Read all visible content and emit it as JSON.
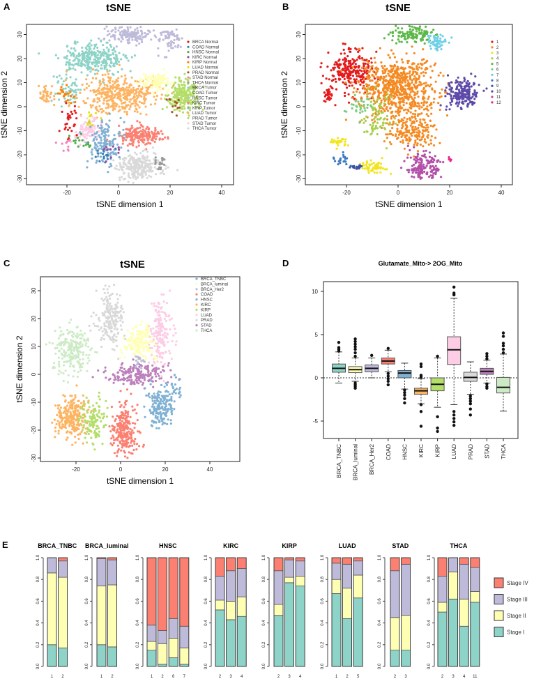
{
  "chart_data": [
    {
      "panel": "A",
      "type": "scatter",
      "title": "tSNE",
      "xlabel": "tSNE dimension 1",
      "ylabel": "tSNE dimension 2",
      "xlim": [
        -36,
        44
      ],
      "ylim": [
        -32,
        34
      ],
      "xticks": [
        -20,
        0,
        20,
        40
      ],
      "yticks": [
        -30,
        -20,
        -10,
        0,
        10,
        20,
        30
      ],
      "legend_position": "right",
      "legend": [
        {
          "label": "BRCA Normal",
          "color": "#e41a1c"
        },
        {
          "label": "COAD Normal",
          "color": "#377eb8"
        },
        {
          "label": "HNSC Normal",
          "color": "#4daf4a"
        },
        {
          "label": "KIRC Normal",
          "color": "#984ea3"
        },
        {
          "label": "KIRP Normal",
          "color": "#ff7f00"
        },
        {
          "label": "LUAD Normal",
          "color": "#e6e600"
        },
        {
          "label": "PRAD Normal",
          "color": "#a65628"
        },
        {
          "label": "STAD Normal",
          "color": "#f781bf"
        },
        {
          "label": "THCA Normal",
          "color": "#999999"
        },
        {
          "label": "BRCA Tumor",
          "color": "#8dd3c7"
        },
        {
          "label": "COAD Tumor",
          "color": "#ffffb3"
        },
        {
          "label": "HNSC Tumor",
          "color": "#bebada"
        },
        {
          "label": "KIRC Tumor",
          "color": "#fb8072"
        },
        {
          "label": "KIRP Tumor",
          "color": "#80b1d3"
        },
        {
          "label": "LUAD Tumor",
          "color": "#fdb462"
        },
        {
          "label": "PRAD Tumor",
          "color": "#b3de69"
        },
        {
          "label": "STAD Tumor",
          "color": "#fccde5"
        },
        {
          "label": "THCA Tumor",
          "color": "#d9d9d9"
        }
      ],
      "clusters": [
        [
          11,
          5,
          30,
          8,
          3,
          150
        ],
        [
          11,
          20,
          28,
          4,
          4,
          60
        ],
        [
          9,
          -10,
          20,
          10,
          5,
          300
        ],
        [
          9,
          -20,
          8,
          4,
          6,
          60
        ],
        [
          14,
          0,
          5,
          12,
          7,
          400
        ],
        [
          14,
          -28,
          5,
          3,
          3,
          40
        ],
        [
          10,
          15,
          10,
          5,
          3,
          100
        ],
        [
          15,
          25,
          5,
          5,
          5,
          250
        ],
        [
          12,
          8,
          -12,
          7,
          3,
          200
        ],
        [
          17,
          8,
          -25,
          7,
          4,
          250
        ],
        [
          16,
          -12,
          -10,
          5,
          4,
          100
        ],
        [
          13,
          -5,
          -15,
          6,
          7,
          150
        ],
        [
          0,
          -20,
          -5,
          3,
          8,
          30
        ],
        [
          1,
          -5,
          -20,
          3,
          3,
          15
        ],
        [
          2,
          -15,
          -15,
          4,
          4,
          15
        ],
        [
          3,
          -3,
          -18,
          3,
          3,
          10
        ],
        [
          4,
          -20,
          5,
          4,
          3,
          20
        ],
        [
          5,
          -10,
          -5,
          3,
          3,
          10
        ],
        [
          6,
          22,
          0,
          3,
          3,
          12
        ],
        [
          7,
          -20,
          -15,
          3,
          3,
          10
        ],
        [
          8,
          17,
          -23,
          3,
          2,
          20
        ]
      ]
    },
    {
      "panel": "B",
      "type": "scatter",
      "title": "tSNE",
      "xlabel": "tSNE dimension 1",
      "ylabel": "tSNE dimension 2",
      "xlim": [
        -36,
        44
      ],
      "ylim": [
        -32,
        34
      ],
      "xticks": [
        -20,
        0,
        20,
        40
      ],
      "yticks": [
        -30,
        -20,
        -10,
        0,
        10,
        20,
        30
      ],
      "legend_position": "right",
      "legend": [
        {
          "label": "1",
          "color": "#e41a1c"
        },
        {
          "label": "2",
          "color": "#f58a22"
        },
        {
          "label": "3",
          "color": "#f2e51c"
        },
        {
          "label": "4",
          "color": "#a6d04a"
        },
        {
          "label": "5",
          "color": "#5bb848"
        },
        {
          "label": "6",
          "color": "#7ccd7c"
        },
        {
          "label": "7",
          "color": "#6fd0e6"
        },
        {
          "label": "8",
          "color": "#3b78c2"
        },
        {
          "label": "9",
          "color": "#3a4fa8"
        },
        {
          "label": "10",
          "color": "#5d4aa8"
        },
        {
          "label": "11",
          "color": "#b34ea8"
        },
        {
          "label": "12",
          "color": "#e8268a"
        }
      ],
      "clusters": [
        [
          0,
          -18,
          15,
          8,
          8,
          250
        ],
        [
          0,
          -27,
          5,
          2,
          3,
          30
        ],
        [
          1,
          0,
          8,
          12,
          10,
          700
        ],
        [
          1,
          5,
          -10,
          8,
          6,
          200
        ],
        [
          2,
          -10,
          -25,
          4,
          2,
          60
        ],
        [
          2,
          -23,
          -15,
          3,
          2,
          25
        ],
        [
          3,
          -8,
          -5,
          5,
          8,
          80
        ],
        [
          4,
          5,
          30,
          7,
          3,
          120
        ],
        [
          5,
          -15,
          0,
          4,
          4,
          30
        ],
        [
          6,
          15,
          27,
          3,
          3,
          60
        ],
        [
          7,
          -22,
          -22,
          3,
          2,
          20
        ],
        [
          8,
          -15,
          -25,
          3,
          1,
          15
        ],
        [
          9,
          25,
          5,
          5,
          5,
          200
        ],
        [
          10,
          10,
          -25,
          6,
          5,
          150
        ],
        [
          11,
          20,
          -22,
          1,
          1,
          5
        ]
      ]
    },
    {
      "panel": "C",
      "type": "scatter",
      "title": "tSNE",
      "xlabel": "tSNE dimension 1",
      "ylabel": "tSNE dimension 2",
      "xlim": [
        -36,
        53
      ],
      "ylim": [
        -31,
        35
      ],
      "xticks": [
        -20,
        0,
        20,
        40
      ],
      "yticks": [
        -30,
        -20,
        -10,
        0,
        10,
        20,
        30
      ],
      "legend_position": "right",
      "legend": [
        {
          "label": "BRCA_TNBC",
          "color": "#80b1d3"
        },
        {
          "label": "BRCA_luminal",
          "color": "#ffffb3"
        },
        {
          "label": "BRCA_Her2",
          "color": "#bebada"
        },
        {
          "label": "COAD",
          "color": "#fb8072"
        },
        {
          "label": "HNSC",
          "color": "#80b1d3"
        },
        {
          "label": "KIRC",
          "color": "#fdb462"
        },
        {
          "label": "KIRP",
          "color": "#b3de69"
        },
        {
          "label": "LUAD",
          "color": "#fccde5"
        },
        {
          "label": "PRAD",
          "color": "#d9d9d9"
        },
        {
          "label": "STAD",
          "color": "#bc80bd"
        },
        {
          "label": "THCA",
          "color": "#ccebc5"
        }
      ],
      "clusters": [
        [
          10,
          -22,
          8,
          7,
          8,
          220
        ],
        [
          8,
          -5,
          20,
          5,
          8,
          200
        ],
        [
          7,
          18,
          15,
          4,
          10,
          180
        ],
        [
          1,
          8,
          12,
          6,
          6,
          150
        ],
        [
          9,
          8,
          0,
          12,
          3,
          200
        ],
        [
          5,
          -22,
          -15,
          6,
          6,
          250
        ],
        [
          6,
          -12,
          -17,
          4,
          6,
          120
        ],
        [
          3,
          2,
          -20,
          5,
          8,
          250
        ],
        [
          4,
          18,
          -12,
          5,
          6,
          180
        ],
        [
          0,
          25,
          -5,
          2,
          3,
          20
        ],
        [
          2,
          8,
          5,
          2,
          2,
          15
        ]
      ]
    },
    {
      "panel": "D",
      "type": "box",
      "title": "Glutamate_Mito-> 2OG_Mito",
      "ylim": [
        -7,
        11.1
      ],
      "yticks": [
        -5,
        0,
        5,
        10
      ],
      "reference_line": 0,
      "categories": [
        "BRCA_TNBC",
        "BRCA_luminal",
        "BRCA_Her2",
        "COAD",
        "HNSC",
        "KIRC",
        "KIRP",
        "LUAD",
        "PRAD",
        "STAD",
        "THCA"
      ],
      "colors": [
        "#8dd3c7",
        "#ffffb3",
        "#bebada",
        "#fb8072",
        "#80b1d3",
        "#fdb462",
        "#b3de69",
        "#fccde5",
        "#d9d9d9",
        "#bc80bd",
        "#ccebc5"
      ],
      "boxes": [
        {
          "wlo": -0.6,
          "q1": 0.65,
          "med": 1.1,
          "q3": 1.6,
          "whi": 3.0,
          "out": [
            3.1,
            3.3,
            3.5,
            4.1
          ]
        },
        {
          "wlo": -0.4,
          "q1": 0.6,
          "med": 0.95,
          "q3": 1.3,
          "whi": 2.3,
          "out": [
            2.5,
            2.9,
            3.3,
            3.6,
            3.9,
            4.2,
            4.5,
            -0.6,
            -0.8,
            -1.0,
            -1.2
          ]
        },
        {
          "wlo": 0.0,
          "q1": 0.7,
          "med": 1.1,
          "q3": 1.5,
          "whi": 2.3,
          "out": [
            2.6
          ]
        },
        {
          "wlo": 0.7,
          "q1": 1.6,
          "med": 1.95,
          "q3": 2.3,
          "whi": 3.2,
          "out": [
            3.4,
            0.5,
            0.2,
            -0.1,
            -0.4,
            -0.8
          ]
        },
        {
          "wlo": -1.3,
          "q1": 0.0,
          "med": 0.55,
          "q3": 0.85,
          "whi": 1.7,
          "out": [
            -1.4,
            -1.7,
            -2.0,
            -2.4,
            -2.9
          ]
        },
        {
          "wlo": -3.0,
          "q1": -1.9,
          "med": -1.5,
          "q3": -1.2,
          "whi": -0.1,
          "out": [
            0.1,
            0.3,
            1.3,
            1.6,
            -3.1,
            -3.9,
            -5.6
          ]
        },
        {
          "wlo": -3.4,
          "q1": -1.5,
          "med": -0.75,
          "q3": 0.0,
          "whi": 2.3,
          "out": [
            2.5,
            -4.5,
            -5.8,
            -6.2
          ]
        },
        {
          "wlo": -3.1,
          "q1": 1.55,
          "med": 3.25,
          "q3": 4.75,
          "whi": 9.2,
          "out": [
            9.6,
            9.8,
            10.5,
            -3.9,
            -4.3,
            -4.7,
            -5.1,
            -5.5
          ]
        },
        {
          "wlo": -1.9,
          "q1": -0.4,
          "med": 0.05,
          "q3": 0.65,
          "whi": 1.85,
          "out": [
            -2.1,
            -2.4,
            -2.7,
            -3.0,
            -3.6,
            -4.3
          ]
        },
        {
          "wlo": -0.6,
          "q1": 0.4,
          "med": 0.75,
          "q3": 1.1,
          "whi": 2.05,
          "out": [
            2.2,
            2.5,
            2.8,
            -0.7,
            -1.0,
            -1.2
          ]
        },
        {
          "wlo": -3.85,
          "q1": -1.75,
          "med": -1.1,
          "q3": 0.05,
          "whi": 2.75,
          "out": [
            2.9,
            3.3,
            3.7,
            4.0,
            4.8,
            5.2
          ]
        }
      ]
    },
    {
      "panel": "E",
      "type": "stacked_bar",
      "ylim": [
        0,
        1
      ],
      "yticks": [
        "0.0",
        "0.2",
        "0.4",
        "0.6",
        "0.8",
        "1.0"
      ],
      "stages": [
        "Stage I",
        "Stage II",
        "Stage III",
        "Stage IV"
      ],
      "legend": [
        "Stage IV",
        "Stage III",
        "Stage II",
        "Stage I"
      ],
      "legend_position": "right",
      "colors": {
        "Stage I": "#8dd3c7",
        "Stage II": "#ffffb3",
        "Stage III": "#bebada",
        "Stage IV": "#fb8072"
      },
      "groups": [
        {
          "title": "BRCA_TNBC",
          "bars": [
            {
              "label": "1",
              "v": [
                0.2,
                0.66,
                0.14,
                0.0
              ]
            },
            {
              "label": "2",
              "v": [
                0.17,
                0.65,
                0.15,
                0.03
              ]
            }
          ]
        },
        {
          "title": "BRCA_luminal",
          "bars": [
            {
              "label": "1",
              "v": [
                0.2,
                0.54,
                0.25,
                0.01
              ]
            },
            {
              "label": "2",
              "v": [
                0.18,
                0.57,
                0.23,
                0.02
              ]
            }
          ]
        },
        {
          "title": "HNSC",
          "bars": [
            {
              "label": "1",
              "v": [
                0.15,
                0.08,
                0.15,
                0.62
              ]
            },
            {
              "label": "2",
              "v": [
                0.02,
                0.19,
                0.12,
                0.67
              ]
            },
            {
              "label": "6",
              "v": [
                0.08,
                0.18,
                0.18,
                0.56
              ]
            },
            {
              "label": "7",
              "v": [
                0.02,
                0.15,
                0.2,
                0.63
              ]
            }
          ]
        },
        {
          "title": "KIRC",
          "bars": [
            {
              "label": "2",
              "v": [
                0.52,
                0.09,
                0.22,
                0.17
              ]
            },
            {
              "label": "3",
              "v": [
                0.43,
                0.17,
                0.28,
                0.12
              ]
            },
            {
              "label": "4",
              "v": [
                0.46,
                0.18,
                0.26,
                0.1
              ]
            }
          ]
        },
        {
          "title": "KIRP",
          "bars": [
            {
              "label": "2",
              "v": [
                0.47,
                0.1,
                0.31,
                0.12
              ]
            },
            {
              "label": "3",
              "v": [
                0.77,
                0.05,
                0.16,
                0.02
              ]
            },
            {
              "label": "4",
              "v": [
                0.74,
                0.09,
                0.14,
                0.03
              ]
            }
          ]
        },
        {
          "title": "LUAD",
          "bars": [
            {
              "label": "1",
              "v": [
                0.67,
                0.13,
                0.15,
                0.05
              ]
            },
            {
              "label": "2",
              "v": [
                0.44,
                0.28,
                0.22,
                0.06
              ]
            },
            {
              "label": "5",
              "v": [
                0.63,
                0.21,
                0.13,
                0.03
              ]
            }
          ]
        },
        {
          "title": "STAD",
          "bars": [
            {
              "label": "2",
              "v": [
                0.15,
                0.3,
                0.43,
                0.12
              ]
            },
            {
              "label": "3",
              "v": [
                0.15,
                0.32,
                0.47,
                0.06
              ]
            }
          ]
        },
        {
          "title": "THCA",
          "bars": [
            {
              "label": "2",
              "v": [
                0.5,
                0.09,
                0.24,
                0.17
              ]
            },
            {
              "label": "3",
              "v": [
                0.62,
                0.25,
                0.13,
                0.0
              ]
            },
            {
              "label": "4",
              "v": [
                0.37,
                0.25,
                0.32,
                0.06
              ]
            },
            {
              "label": "11",
              "v": [
                0.59,
                0.1,
                0.22,
                0.09
              ]
            }
          ]
        }
      ]
    }
  ],
  "panel_labels": [
    "A",
    "B",
    "C",
    "D",
    "E"
  ]
}
